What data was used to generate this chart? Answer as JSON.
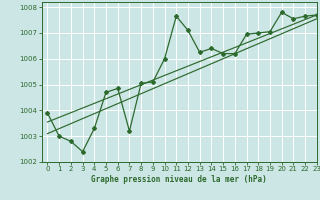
{
  "title": "Graphe pression niveau de la mer (hPa)",
  "bg_color": "#cce5e5",
  "grid_color": "#ffffff",
  "line_color": "#2d6a2d",
  "xlim": [
    -0.5,
    23
  ],
  "ylim": [
    1002,
    1008.2
  ],
  "xticks": [
    0,
    1,
    2,
    3,
    4,
    5,
    6,
    7,
    8,
    9,
    10,
    11,
    12,
    13,
    14,
    15,
    16,
    17,
    18,
    19,
    20,
    21,
    22,
    23
  ],
  "yticks": [
    1002,
    1003,
    1004,
    1005,
    1006,
    1007,
    1008
  ],
  "data_x": [
    0,
    1,
    2,
    3,
    4,
    5,
    6,
    7,
    8,
    9,
    10,
    11,
    12,
    13,
    14,
    15,
    16,
    17,
    18,
    19,
    20,
    21,
    22,
    23
  ],
  "data_y": [
    1003.9,
    1003.0,
    1002.8,
    1002.4,
    1003.3,
    1004.7,
    1004.85,
    1003.2,
    1005.05,
    1005.1,
    1006.0,
    1007.65,
    1007.1,
    1006.25,
    1006.4,
    1006.2,
    1006.2,
    1006.95,
    1007.0,
    1007.05,
    1007.8,
    1007.55,
    1007.65,
    1007.7
  ],
  "trend1_x": [
    0,
    23
  ],
  "trend1_y": [
    1003.1,
    1007.55
  ],
  "trend2_x": [
    0,
    23
  ],
  "trend2_y": [
    1003.55,
    1007.7
  ]
}
